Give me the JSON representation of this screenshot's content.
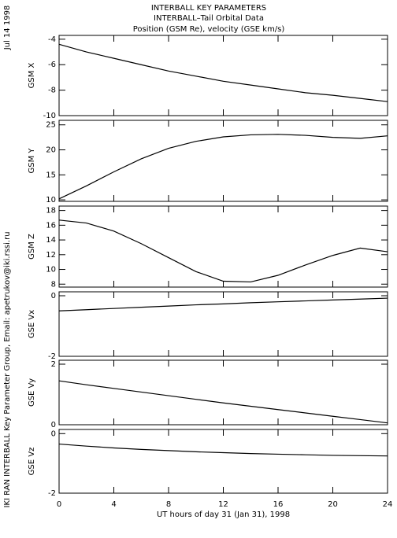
{
  "header": {
    "lines": [
      "INTERBALL KEY PARAMETERS",
      "INTERBALL–Tail Orbital Data",
      "Position (GSM Re), velocity (GSE km/s)"
    ],
    "date": "Jul 14 1998",
    "credit": "IKI RAN INTERBALL Key Parameter Group, Email: apetrukov@iki.rssi.ru"
  },
  "chart_data": [
    {
      "type": "line",
      "ylabel": "GSM X",
      "x": [
        0,
        2,
        4,
        6,
        8,
        10,
        12,
        14,
        16,
        18,
        20,
        22,
        24
      ],
      "values": [
        -4.4,
        -5.0,
        -5.5,
        -6.0,
        -6.5,
        -6.9,
        -7.3,
        -7.6,
        -7.9,
        -8.2,
        -8.4,
        -8.65,
        -8.9
      ],
      "xlim": [
        0,
        24
      ],
      "xticks": [
        0,
        4,
        8,
        12,
        16,
        20,
        24
      ],
      "ylim": [
        -10,
        -3.7
      ],
      "yticks": [
        -4,
        -6,
        -8,
        -10
      ],
      "color": "#000000"
    },
    {
      "type": "line",
      "ylabel": "GSM Y",
      "x": [
        0,
        2,
        4,
        6,
        8,
        10,
        12,
        14,
        16,
        18,
        20,
        22,
        24
      ],
      "values": [
        10.2,
        12.8,
        15.6,
        18.2,
        20.3,
        21.7,
        22.6,
        23.0,
        23.1,
        22.9,
        22.5,
        22.3,
        22.8
      ],
      "xlim": [
        0,
        24
      ],
      "xticks": [
        0,
        4,
        8,
        12,
        16,
        20,
        24
      ],
      "ylim": [
        9.7,
        25.9
      ],
      "yticks": [
        25,
        20,
        15,
        10
      ],
      "color": "#000000"
    },
    {
      "type": "line",
      "ylabel": "GSM Z",
      "x": [
        0,
        2,
        4,
        6,
        8,
        10,
        12,
        14,
        16,
        18,
        20,
        22,
        24
      ],
      "values": [
        16.7,
        16.3,
        15.2,
        13.5,
        11.6,
        9.7,
        8.4,
        8.3,
        9.2,
        10.6,
        11.9,
        12.9,
        12.4
      ],
      "xlim": [
        0,
        24
      ],
      "xticks": [
        0,
        4,
        8,
        12,
        16,
        20,
        24
      ],
      "ylim": [
        7.6,
        18.6
      ],
      "yticks": [
        18,
        16,
        14,
        12,
        10,
        8
      ],
      "color": "#000000"
    },
    {
      "type": "line",
      "ylabel": "GSE Vx",
      "x": [
        0,
        2,
        4,
        6,
        8,
        10,
        12,
        14,
        16,
        18,
        20,
        22,
        24
      ],
      "values": [
        -0.5,
        -0.46,
        -0.42,
        -0.38,
        -0.34,
        -0.3,
        -0.27,
        -0.23,
        -0.2,
        -0.17,
        -0.14,
        -0.11,
        -0.08
      ],
      "xlim": [
        0,
        24
      ],
      "xticks": [
        0,
        4,
        8,
        12,
        16,
        20,
        24
      ],
      "ylim": [
        -2,
        0.13
      ],
      "yticks": [
        0,
        -2
      ],
      "color": "#000000"
    },
    {
      "type": "line",
      "ylabel": "GSE Vy",
      "x": [
        0,
        2,
        4,
        6,
        8,
        10,
        12,
        14,
        16,
        18,
        20,
        22,
        24
      ],
      "values": [
        1.45,
        1.32,
        1.2,
        1.08,
        0.96,
        0.84,
        0.72,
        0.61,
        0.5,
        0.39,
        0.28,
        0.17,
        0.06
      ],
      "xlim": [
        0,
        24
      ],
      "xticks": [
        0,
        4,
        8,
        12,
        16,
        20,
        24
      ],
      "ylim": [
        0,
        2.13
      ],
      "yticks": [
        2,
        0
      ],
      "color": "#000000"
    },
    {
      "type": "line",
      "ylabel": "GSE Vz",
      "xlabel": "UT hours of day  31 (Jan 31), 1998",
      "x": [
        0,
        2,
        4,
        6,
        8,
        10,
        12,
        14,
        16,
        18,
        20,
        22,
        24
      ],
      "values": [
        -0.35,
        -0.42,
        -0.48,
        -0.53,
        -0.57,
        -0.61,
        -0.64,
        -0.67,
        -0.69,
        -0.71,
        -0.73,
        -0.74,
        -0.75
      ],
      "xlim": [
        0,
        24
      ],
      "xticks": [
        0,
        4,
        8,
        12,
        16,
        20,
        24
      ],
      "ylim": [
        -2,
        0.14
      ],
      "yticks": [
        0,
        -2
      ],
      "color": "#000000"
    }
  ]
}
